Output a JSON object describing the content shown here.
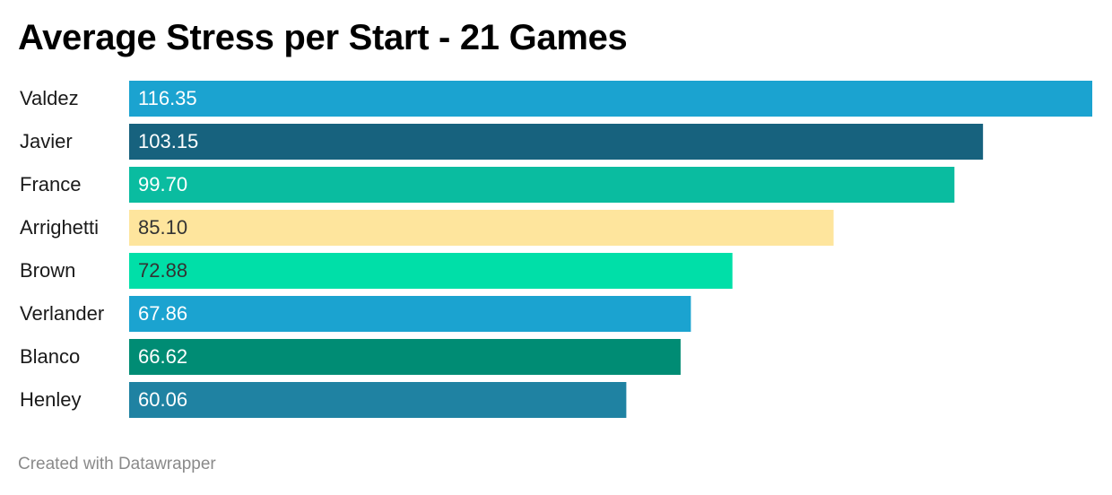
{
  "title": "Average Stress per Start - 21 Games",
  "footer": "Created with Datawrapper",
  "chart_data": {
    "type": "bar",
    "orientation": "horizontal",
    "title": "Average Stress per Start - 21 Games",
    "xlabel": "",
    "ylabel": "",
    "grid": false,
    "legend": "none",
    "xlim": [
      0,
      116.35
    ],
    "categories": [
      "Valdez",
      "Javier",
      "France",
      "Arrighetti",
      "Brown",
      "Verlander",
      "Blanco",
      "Henley"
    ],
    "values": [
      116.35,
      103.15,
      99.7,
      85.1,
      72.88,
      67.86,
      66.62,
      60.06
    ],
    "value_labels": [
      "116.35",
      "103.15",
      "99.70",
      "85.10",
      "72.88",
      "67.86",
      "66.62",
      "60.06"
    ],
    "bar_colors": [
      "#1ba3d0",
      "#17627e",
      "#0abca0",
      "#fee59d",
      "#00dfa8",
      "#1ba3d0",
      "#008c74",
      "#1f82a2"
    ],
    "value_label_colors": [
      "#ffffff",
      "#ffffff",
      "#ffffff",
      "#333333",
      "#333333",
      "#ffffff",
      "#ffffff",
      "#ffffff"
    ]
  }
}
